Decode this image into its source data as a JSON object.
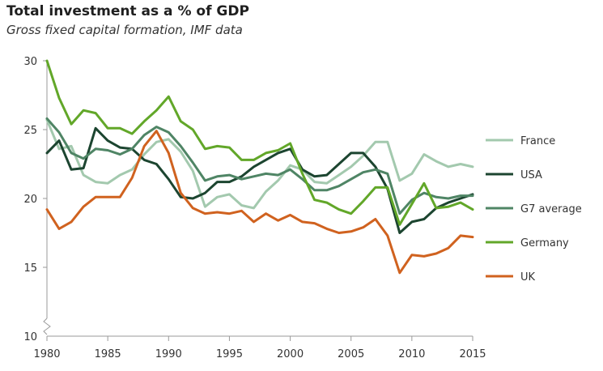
{
  "chart_data": {
    "type": "line",
    "title": "Total investment as a % of GDP",
    "subtitle": "Gross fixed capital formation, IMF data",
    "xlabel": "",
    "ylabel": "",
    "xlim": [
      1980,
      2015
    ],
    "ylim": [
      10,
      30
    ],
    "x_ticks": [
      "1980",
      "1985",
      "1990",
      "1995",
      "2000",
      "2005",
      "2010",
      "2015"
    ],
    "y_ticks": [
      "10",
      "15",
      "20",
      "25",
      "30"
    ],
    "axis_break": true,
    "grid": false,
    "legend_position": "right",
    "x": [
      1980,
      1981,
      1982,
      1983,
      1984,
      1985,
      1986,
      1987,
      1988,
      1989,
      1990,
      1991,
      1992,
      1993,
      1994,
      1995,
      1996,
      1997,
      1998,
      1999,
      2000,
      2001,
      2002,
      2003,
      2004,
      2005,
      2006,
      2007,
      2008,
      2009,
      2010,
      2011,
      2012,
      2013,
      2014,
      2015
    ],
    "series": [
      {
        "name": "France",
        "color": "#a3c9ae",
        "values": [
          25.7,
          23.6,
          23.8,
          21.7,
          21.2,
          21.1,
          21.7,
          22.1,
          23.2,
          24.1,
          24.3,
          23.4,
          22.0,
          19.4,
          20.1,
          20.3,
          19.5,
          19.3,
          20.5,
          21.3,
          22.4,
          22.1,
          21.2,
          21.1,
          21.7,
          22.3,
          23.1,
          24.1,
          24.1,
          21.3,
          21.8,
          23.2,
          22.7,
          22.3,
          22.5,
          22.3
        ]
      },
      {
        "name": "USA",
        "color": "#1c4530",
        "values": [
          23.3,
          24.2,
          22.1,
          22.2,
          25.1,
          24.2,
          23.7,
          23.6,
          22.8,
          22.5,
          21.4,
          20.1,
          20.0,
          20.4,
          21.2,
          21.2,
          21.6,
          22.3,
          22.8,
          23.3,
          23.6,
          22.1,
          21.6,
          21.7,
          22.5,
          23.3,
          23.3,
          22.3,
          20.7,
          17.5,
          18.3,
          18.5,
          19.3,
          19.7,
          20.0,
          20.3
        ]
      },
      {
        "name": "G7 average",
        "color": "#4f8565",
        "values": [
          25.8,
          24.8,
          23.3,
          22.9,
          23.6,
          23.5,
          23.2,
          23.6,
          24.6,
          25.2,
          24.8,
          23.8,
          22.6,
          21.3,
          21.6,
          21.7,
          21.4,
          21.6,
          21.8,
          21.7,
          22.1,
          21.4,
          20.6,
          20.6,
          20.9,
          21.4,
          21.9,
          22.1,
          21.8,
          18.9,
          19.9,
          20.4,
          20.1,
          20.0,
          20.2,
          20.2
        ]
      },
      {
        "name": "Germany",
        "color": "#62a729",
        "values": [
          30.0,
          27.3,
          25.4,
          26.4,
          26.2,
          25.1,
          25.1,
          24.7,
          25.6,
          26.4,
          27.4,
          25.6,
          25.0,
          23.6,
          23.8,
          23.7,
          22.8,
          22.8,
          23.3,
          23.5,
          24.0,
          21.8,
          19.9,
          19.7,
          19.2,
          18.9,
          19.8,
          20.8,
          20.8,
          18.1,
          19.6,
          21.1,
          19.3,
          19.4,
          19.7,
          19.2
        ]
      },
      {
        "name": "UK",
        "color": "#d0621f",
        "values": [
          19.2,
          17.8,
          18.3,
          19.4,
          20.1,
          20.1,
          20.1,
          21.5,
          23.8,
          24.9,
          23.3,
          20.4,
          19.3,
          18.9,
          19.0,
          18.9,
          19.1,
          18.3,
          18.9,
          18.4,
          18.8,
          18.3,
          18.2,
          17.8,
          17.5,
          17.6,
          17.9,
          18.5,
          17.3,
          14.6,
          15.9,
          15.8,
          16.0,
          16.4,
          17.3,
          17.2
        ]
      }
    ]
  }
}
